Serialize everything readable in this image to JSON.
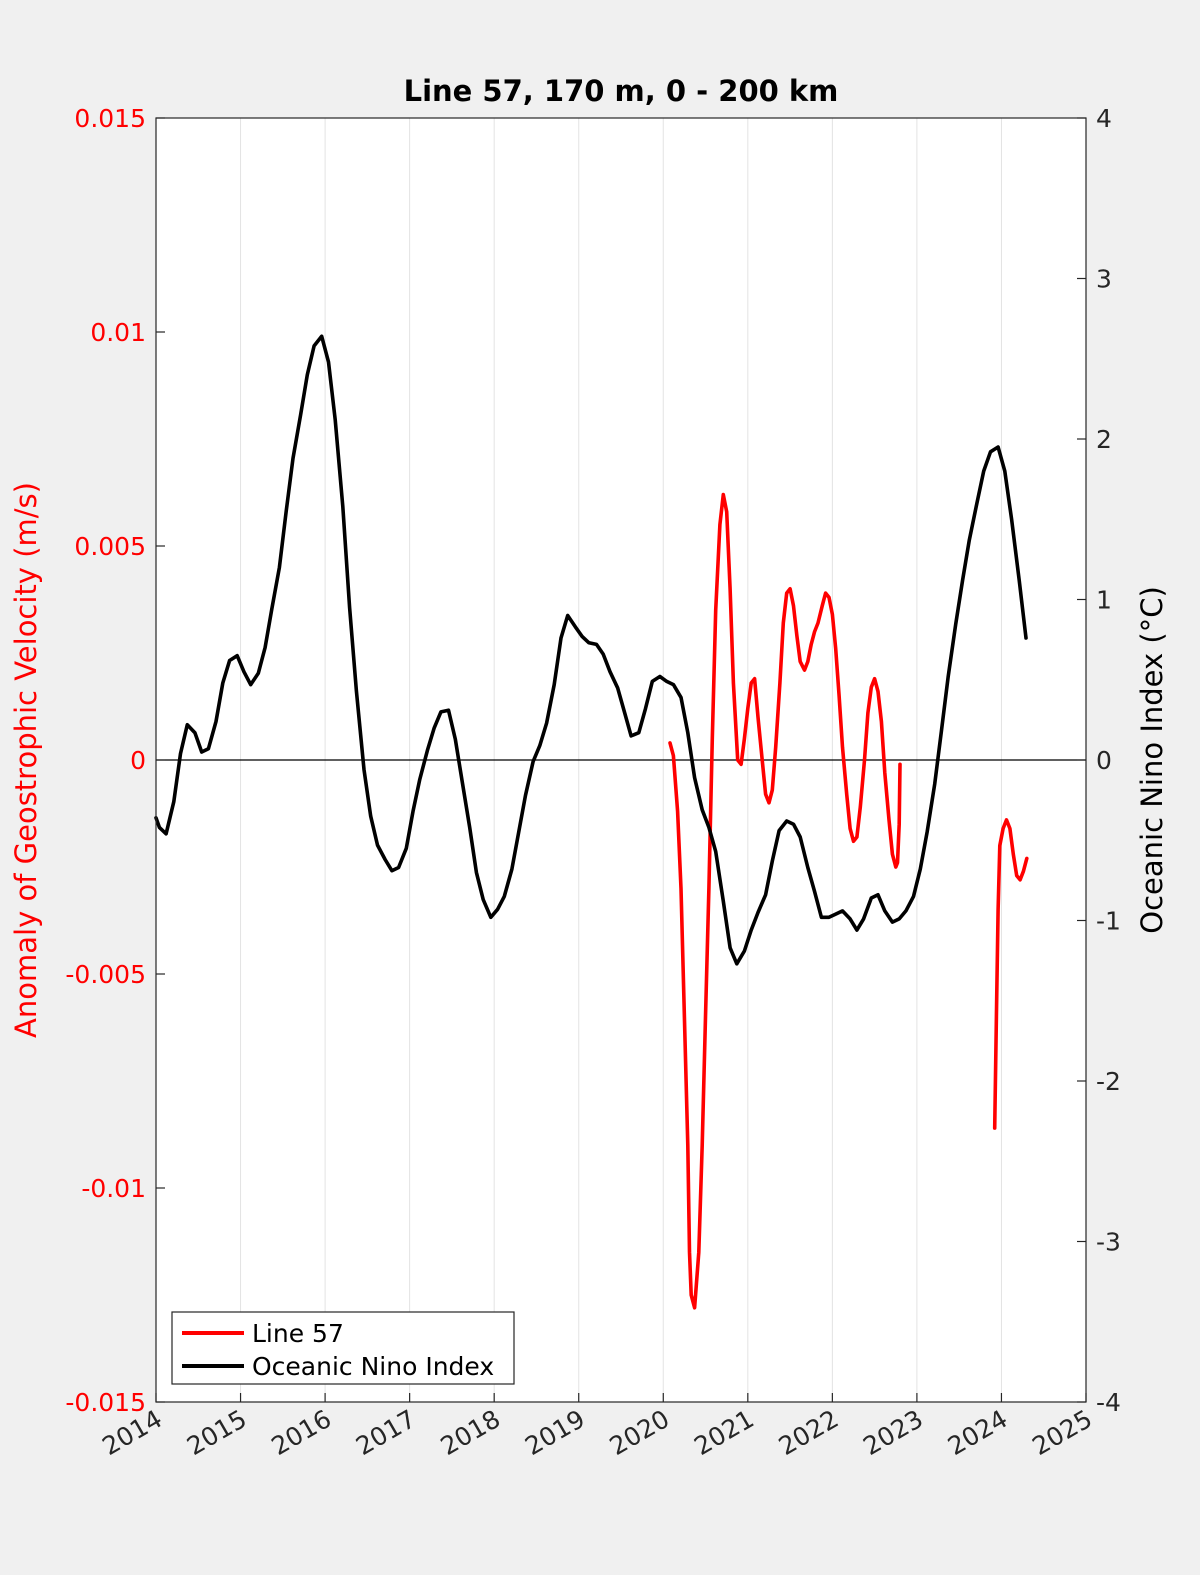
{
  "chart_data": {
    "type": "line",
    "title": "Line 57, 170 m, 0 - 200 km",
    "xlabel": "",
    "ylabel_left": "Anomaly of Geostrophic Velocity (m/s)",
    "ylabel_right": "Oceanic Nino Index (°C)",
    "xlim": [
      2014,
      2025
    ],
    "ylim_left": [
      -0.015,
      0.015
    ],
    "ylim_right": [
      -4,
      4
    ],
    "x_ticks": [
      "2014",
      "2015",
      "2016",
      "2017",
      "2018",
      "2019",
      "2020",
      "2021",
      "2022",
      "2023",
      "2024",
      "2025"
    ],
    "y_left_ticks": [
      "-0.015",
      "-0.01",
      "-0.005",
      "0",
      "0.005",
      "0.01",
      "0.015"
    ],
    "y_right_ticks": [
      "-4",
      "-3",
      "-2",
      "-1",
      "0",
      "1",
      "2",
      "3",
      "4"
    ],
    "grid": "vertical",
    "zero_line": true,
    "legend_position": "bottom-left",
    "colors": {
      "line57": "#ff0000",
      "oni": "#000000"
    },
    "series": [
      {
        "name": "Line 57",
        "axis": "left",
        "segments": [
          [
            [
              2020.08,
              0.0004
            ],
            [
              2020.12,
              0.0001
            ],
            [
              2020.17,
              -0.0012
            ],
            [
              2020.21,
              -0.003
            ],
            [
              2020.25,
              -0.006
            ],
            [
              2020.29,
              -0.009
            ],
            [
              2020.31,
              -0.0115
            ],
            [
              2020.33,
              -0.0125
            ],
            [
              2020.37,
              -0.0128
            ],
            [
              2020.42,
              -0.0115
            ],
            [
              2020.46,
              -0.009
            ],
            [
              2020.5,
              -0.006
            ],
            [
              2020.54,
              -0.003
            ],
            [
              2020.58,
              0.0005
            ],
            [
              2020.62,
              0.0035
            ],
            [
              2020.67,
              0.0055
            ],
            [
              2020.71,
              0.0062
            ],
            [
              2020.75,
              0.0058
            ],
            [
              2020.79,
              0.004
            ],
            [
              2020.83,
              0.0018
            ],
            [
              2020.88,
              0.0
            ],
            [
              2020.92,
              -0.0001
            ],
            [
              2020.96,
              0.0005
            ],
            [
              2021.0,
              0.0012
            ],
            [
              2021.04,
              0.0018
            ],
            [
              2021.08,
              0.0019
            ],
            [
              2021.12,
              0.001
            ],
            [
              2021.17,
              0.0
            ],
            [
              2021.21,
              -0.0008
            ],
            [
              2021.25,
              -0.001
            ],
            [
              2021.29,
              -0.0007
            ],
            [
              2021.33,
              0.0003
            ],
            [
              2021.38,
              0.0018
            ],
            [
              2021.42,
              0.0032
            ],
            [
              2021.46,
              0.0039
            ],
            [
              2021.5,
              0.004
            ],
            [
              2021.54,
              0.0036
            ],
            [
              2021.58,
              0.0029
            ],
            [
              2021.62,
              0.0023
            ],
            [
              2021.67,
              0.0021
            ],
            [
              2021.71,
              0.0023
            ],
            [
              2021.75,
              0.0027
            ],
            [
              2021.79,
              0.003
            ],
            [
              2021.83,
              0.0032
            ],
            [
              2021.88,
              0.0036
            ],
            [
              2021.92,
              0.0039
            ],
            [
              2021.96,
              0.0038
            ],
            [
              2022.0,
              0.0034
            ],
            [
              2022.04,
              0.0026
            ],
            [
              2022.08,
              0.0015
            ],
            [
              2022.12,
              0.0003
            ],
            [
              2022.17,
              -0.0008
            ],
            [
              2022.21,
              -0.0016
            ],
            [
              2022.25,
              -0.0019
            ],
            [
              2022.29,
              -0.0018
            ],
            [
              2022.33,
              -0.0011
            ],
            [
              2022.38,
              0.0
            ],
            [
              2022.42,
              0.0011
            ],
            [
              2022.46,
              0.0017
            ],
            [
              2022.5,
              0.0019
            ],
            [
              2022.54,
              0.0016
            ],
            [
              2022.58,
              0.0009
            ],
            [
              2022.62,
              -0.0003
            ],
            [
              2022.67,
              -0.0014
            ],
            [
              2022.71,
              -0.0022
            ],
            [
              2022.75,
              -0.0025
            ],
            [
              2022.77,
              -0.0024
            ],
            [
              2022.79,
              -0.0015
            ],
            [
              2022.8,
              -0.0001
            ]
          ],
          [
            [
              2023.92,
              -0.0086
            ],
            [
              2023.94,
              -0.006
            ],
            [
              2023.96,
              -0.0035
            ],
            [
              2023.98,
              -0.002
            ],
            [
              2024.02,
              -0.0016
            ],
            [
              2024.06,
              -0.0014
            ],
            [
              2024.1,
              -0.0016
            ],
            [
              2024.14,
              -0.0022
            ],
            [
              2024.18,
              -0.0027
            ],
            [
              2024.22,
              -0.0028
            ],
            [
              2024.26,
              -0.0026
            ],
            [
              2024.3,
              -0.0023
            ]
          ]
        ]
      },
      {
        "name": "Oceanic Nino Index",
        "axis": "right",
        "segments": [
          [
            [
              2014.0,
              -0.36
            ],
            [
              2014.04,
              -0.42
            ],
            [
              2014.12,
              -0.46
            ],
            [
              2014.21,
              -0.26
            ],
            [
              2014.29,
              0.04
            ],
            [
              2014.37,
              0.22
            ],
            [
              2014.46,
              0.17
            ],
            [
              2014.54,
              0.05
            ],
            [
              2014.62,
              0.07
            ],
            [
              2014.71,
              0.24
            ],
            [
              2014.79,
              0.48
            ],
            [
              2014.87,
              0.62
            ],
            [
              2014.96,
              0.65
            ],
            [
              2015.04,
              0.55
            ],
            [
              2015.12,
              0.47
            ],
            [
              2015.21,
              0.54
            ],
            [
              2015.29,
              0.7
            ],
            [
              2015.37,
              0.94
            ],
            [
              2015.46,
              1.2
            ],
            [
              2015.54,
              1.55
            ],
            [
              2015.62,
              1.88
            ],
            [
              2015.71,
              2.15
            ],
            [
              2015.79,
              2.4
            ],
            [
              2015.87,
              2.58
            ],
            [
              2015.96,
              2.64
            ],
            [
              2016.04,
              2.48
            ],
            [
              2016.12,
              2.12
            ],
            [
              2016.21,
              1.58
            ],
            [
              2016.29,
              0.95
            ],
            [
              2016.37,
              0.43
            ],
            [
              2016.46,
              -0.06
            ],
            [
              2016.54,
              -0.35
            ],
            [
              2016.62,
              -0.53
            ],
            [
              2016.71,
              -0.62
            ],
            [
              2016.79,
              -0.69
            ],
            [
              2016.87,
              -0.67
            ],
            [
              2016.96,
              -0.55
            ],
            [
              2017.04,
              -0.32
            ],
            [
              2017.12,
              -0.12
            ],
            [
              2017.21,
              0.06
            ],
            [
              2017.29,
              0.2
            ],
            [
              2017.37,
              0.3
            ],
            [
              2017.46,
              0.31
            ],
            [
              2017.54,
              0.13
            ],
            [
              2017.62,
              -0.13
            ],
            [
              2017.71,
              -0.42
            ],
            [
              2017.79,
              -0.7
            ],
            [
              2017.87,
              -0.87
            ],
            [
              2017.96,
              -0.98
            ],
            [
              2018.04,
              -0.93
            ],
            [
              2018.12,
              -0.85
            ],
            [
              2018.21,
              -0.68
            ],
            [
              2018.29,
              -0.45
            ],
            [
              2018.37,
              -0.22
            ],
            [
              2018.46,
              -0.01
            ],
            [
              2018.54,
              0.09
            ],
            [
              2018.62,
              0.23
            ],
            [
              2018.71,
              0.47
            ],
            [
              2018.79,
              0.76
            ],
            [
              2018.87,
              0.9
            ],
            [
              2018.96,
              0.83
            ],
            [
              2019.04,
              0.77
            ],
            [
              2019.12,
              0.73
            ],
            [
              2019.21,
              0.72
            ],
            [
              2019.29,
              0.66
            ],
            [
              2019.37,
              0.55
            ],
            [
              2019.46,
              0.45
            ],
            [
              2019.54,
              0.3
            ],
            [
              2019.62,
              0.15
            ],
            [
              2019.71,
              0.17
            ],
            [
              2019.79,
              0.32
            ],
            [
              2019.87,
              0.49
            ],
            [
              2019.96,
              0.52
            ],
            [
              2020.04,
              0.49
            ],
            [
              2020.12,
              0.47
            ],
            [
              2020.21,
              0.39
            ],
            [
              2020.29,
              0.17
            ],
            [
              2020.37,
              -0.11
            ],
            [
              2020.46,
              -0.31
            ],
            [
              2020.54,
              -0.42
            ],
            [
              2020.62,
              -0.57
            ],
            [
              2020.71,
              -0.88
            ],
            [
              2020.79,
              -1.17
            ],
            [
              2020.87,
              -1.27
            ],
            [
              2020.96,
              -1.19
            ],
            [
              2021.04,
              -1.06
            ],
            [
              2021.12,
              -0.95
            ],
            [
              2021.21,
              -0.84
            ],
            [
              2021.29,
              -0.63
            ],
            [
              2021.37,
              -0.44
            ],
            [
              2021.46,
              -0.38
            ],
            [
              2021.54,
              -0.4
            ],
            [
              2021.62,
              -0.48
            ],
            [
              2021.71,
              -0.67
            ],
            [
              2021.79,
              -0.82
            ],
            [
              2021.87,
              -0.98
            ],
            [
              2021.96,
              -0.98
            ],
            [
              2022.04,
              -0.96
            ],
            [
              2022.12,
              -0.94
            ],
            [
              2022.21,
              -0.99
            ],
            [
              2022.29,
              -1.06
            ],
            [
              2022.37,
              -0.99
            ],
            [
              2022.46,
              -0.86
            ],
            [
              2022.54,
              -0.84
            ],
            [
              2022.62,
              -0.94
            ],
            [
              2022.71,
              -1.01
            ],
            [
              2022.79,
              -0.99
            ],
            [
              2022.87,
              -0.94
            ],
            [
              2022.96,
              -0.85
            ],
            [
              2023.04,
              -0.68
            ],
            [
              2023.12,
              -0.45
            ],
            [
              2023.21,
              -0.15
            ],
            [
              2023.29,
              0.18
            ],
            [
              2023.37,
              0.52
            ],
            [
              2023.46,
              0.85
            ],
            [
              2023.54,
              1.12
            ],
            [
              2023.62,
              1.37
            ],
            [
              2023.71,
              1.6
            ],
            [
              2023.79,
              1.8
            ],
            [
              2023.87,
              1.92
            ],
            [
              2023.96,
              1.95
            ],
            [
              2024.04,
              1.8
            ],
            [
              2024.12,
              1.5
            ],
            [
              2024.21,
              1.12
            ],
            [
              2024.29,
              0.76
            ]
          ]
        ]
      }
    ]
  }
}
